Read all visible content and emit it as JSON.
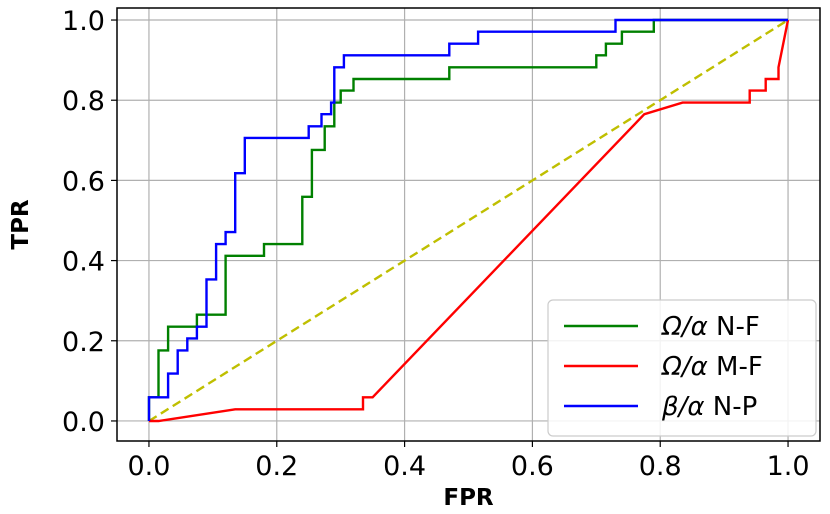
{
  "chart_data": {
    "type": "line",
    "title": "",
    "xlabel": "FPR",
    "ylabel": "TPR",
    "xlim": [
      -0.05,
      1.05
    ],
    "ylim": [
      -0.05,
      1.03
    ],
    "xticks": [
      "0.0",
      "0.2",
      "0.4",
      "0.6",
      "0.8",
      "1.0"
    ],
    "yticks": [
      "0.0",
      "0.2",
      "0.4",
      "0.6",
      "0.8",
      "1.0"
    ],
    "grid": true,
    "legend_position": "bottom-right",
    "series": [
      {
        "name": "Ω/α N-F",
        "color": "#008000",
        "style": "solid",
        "step": true,
        "x": [
          0.0,
          0.0,
          0.015,
          0.015,
          0.03,
          0.03,
          0.075,
          0.075,
          0.12,
          0.12,
          0.18,
          0.18,
          0.24,
          0.24,
          0.255,
          0.255,
          0.275,
          0.275,
          0.29,
          0.29,
          0.3,
          0.3,
          0.32,
          0.32,
          0.47,
          0.47,
          0.7,
          0.7,
          0.715,
          0.715,
          0.74,
          0.74,
          0.79,
          0.79,
          1.0
        ],
        "y": [
          0.0,
          0.059,
          0.059,
          0.176,
          0.176,
          0.235,
          0.235,
          0.265,
          0.265,
          0.412,
          0.412,
          0.441,
          0.441,
          0.559,
          0.559,
          0.676,
          0.676,
          0.735,
          0.735,
          0.794,
          0.794,
          0.824,
          0.824,
          0.853,
          0.853,
          0.882,
          0.882,
          0.912,
          0.912,
          0.941,
          0.941,
          0.971,
          0.971,
          1.0,
          1.0
        ]
      },
      {
        "name": "Ω/α M-F",
        "color": "#ff0000",
        "style": "solid",
        "step": false,
        "x": [
          0.0,
          0.015,
          0.135,
          0.335,
          0.335,
          0.35,
          0.775,
          0.835,
          0.94,
          0.94,
          0.965,
          0.965,
          0.985,
          0.985,
          1.0
        ],
        "y": [
          0.0,
          0.0,
          0.029,
          0.029,
          0.059,
          0.059,
          0.765,
          0.794,
          0.794,
          0.824,
          0.824,
          0.853,
          0.853,
          0.882,
          1.0
        ]
      },
      {
        "name": "β/α N-P",
        "color": "#0000ff",
        "style": "solid",
        "step": true,
        "x": [
          0.0,
          0.0,
          0.03,
          0.03,
          0.045,
          0.045,
          0.06,
          0.06,
          0.075,
          0.075,
          0.09,
          0.09,
          0.105,
          0.105,
          0.12,
          0.12,
          0.135,
          0.135,
          0.15,
          0.15,
          0.25,
          0.25,
          0.27,
          0.27,
          0.285,
          0.285,
          0.29,
          0.29,
          0.305,
          0.305,
          0.47,
          0.47,
          0.515,
          0.515,
          0.73,
          0.73,
          1.0
        ],
        "y": [
          0.0,
          0.059,
          0.059,
          0.118,
          0.118,
          0.176,
          0.176,
          0.206,
          0.206,
          0.235,
          0.235,
          0.353,
          0.353,
          0.441,
          0.441,
          0.471,
          0.471,
          0.618,
          0.618,
          0.706,
          0.706,
          0.735,
          0.735,
          0.765,
          0.765,
          0.794,
          0.794,
          0.882,
          0.882,
          0.912,
          0.912,
          0.941,
          0.941,
          0.971,
          0.971,
          1.0,
          1.0
        ]
      },
      {
        "name": "",
        "color": "#bfbf00",
        "style": "dashed",
        "step": false,
        "x": [
          0.0,
          1.0
        ],
        "y": [
          0.0,
          1.0
        ]
      }
    ]
  },
  "legend": {
    "items": [
      {
        "prefix": "Ω/α",
        "suffix": " N-F",
        "color": "#008000"
      },
      {
        "prefix": "Ω/α",
        "suffix": " M-F",
        "color": "#ff0000"
      },
      {
        "prefix": "β/α",
        "suffix": " N-P",
        "color": "#0000ff"
      }
    ]
  }
}
